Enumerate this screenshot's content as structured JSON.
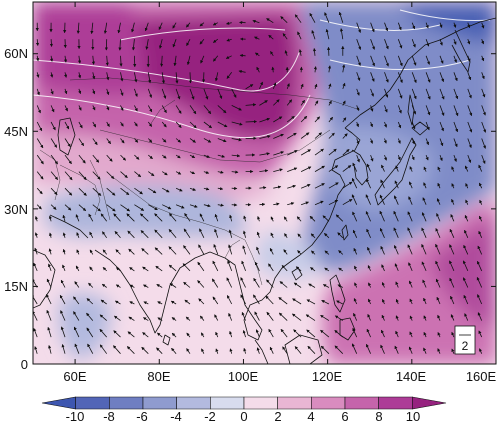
{
  "map": {
    "lon_range": [
      50,
      160
    ],
    "lat_range": [
      0,
      70
    ],
    "lon_ticks": [
      60,
      80,
      100,
      120,
      140,
      160
    ],
    "lat_ticks": [
      0,
      15,
      30,
      45,
      60
    ],
    "x_tick_labels": [
      "60E",
      "80E",
      "100E",
      "120E",
      "140E",
      "160E"
    ],
    "y_tick_labels": [
      "0",
      "15N",
      "30N",
      "45N",
      "60N"
    ],
    "vector_reference": "2"
  },
  "colorbar": {
    "levels": [
      "-10",
      "-8",
      "-6",
      "-4",
      "-2",
      "0",
      "2",
      "4",
      "6",
      "8",
      "10"
    ],
    "colors": [
      "#3d56b0",
      "#5265b7",
      "#6f7ec2",
      "#8f9bcf",
      "#b3badf",
      "#d8dcee",
      "#f4dcea",
      "#e9b6d4",
      "#d98cbf",
      "#c564ab",
      "#ad3c97",
      "#96227f"
    ]
  },
  "fields": {
    "positive_regions": [
      {
        "name": "central-asia-siberia-warm-anomaly",
        "lon": [
          52,
          108
        ],
        "lat": [
          44,
          70
        ],
        "level": "8",
        "fill": "#a93a95"
      },
      {
        "name": "mongolia-warm-core",
        "lon": [
          88,
          108
        ],
        "lat": [
          48,
          60
        ],
        "level": "10",
        "fill": "#96227f"
      },
      {
        "name": "west-asia-warm-tongue",
        "lon": [
          50,
          100
        ],
        "lat": [
          36,
          46
        ],
        "level": "4",
        "fill": "#e7b3d3"
      },
      {
        "name": "north-pacific-warm-anomaly",
        "lon": [
          130,
          160
        ],
        "lat": [
          2,
          28
        ],
        "level": "6",
        "fill": "#cc72b2"
      }
    ],
    "negative_regions": [
      {
        "name": "northeast-asia-cold-anomaly",
        "lon": [
          112,
          160
        ],
        "lat": [
          26,
          70
        ],
        "level": "-6",
        "fill": "#7d8ac8"
      },
      {
        "name": "okhotsk-cold-core",
        "lon": [
          140,
          160
        ],
        "lat": [
          58,
          70
        ],
        "level": "-10",
        "fill": "#3d56b0"
      },
      {
        "name": "south-asia-cold-anomaly",
        "lon": [
          60,
          95
        ],
        "lat": [
          20,
          34
        ],
        "level": "-2",
        "fill": "#adb5dc"
      },
      {
        "name": "arabian-sea-cold-patch",
        "lon": [
          58,
          76
        ],
        "lat": [
          2,
          14
        ],
        "level": "-2",
        "fill": "#b3badf"
      }
    ]
  }
}
